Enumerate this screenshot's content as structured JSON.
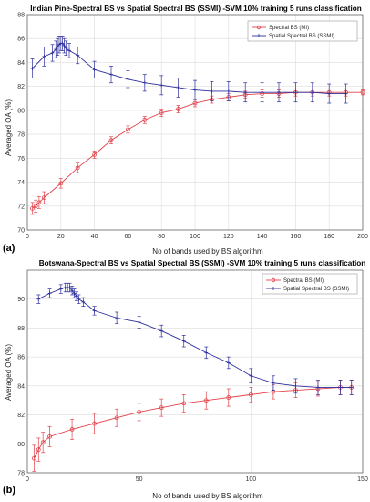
{
  "chart_data": [
    {
      "type": "line",
      "panel_label": "(a)",
      "title": "Indian Pine-Spectral BS vs Spatial Spectral BS (SSMI) -SVM 10% training 5 runs classification",
      "xlabel": "No of bands used by BS algorithm",
      "ylabel": "Averaged OA (%)",
      "xlim": [
        0,
        200
      ],
      "ylim": [
        70,
        88
      ],
      "xticks": [
        0,
        20,
        40,
        60,
        80,
        100,
        120,
        140,
        160,
        180,
        200
      ],
      "yticks": [
        70,
        72,
        74,
        76,
        78,
        80,
        82,
        84,
        86,
        88
      ],
      "grid": true,
      "legend_position": "top-right",
      "series": [
        {
          "name": "Spectral BS (MI)",
          "color": "#e0434b",
          "marker": "circle",
          "points": [
            {
              "x": 3,
              "y": 71.8,
              "err": 0.5
            },
            {
              "x": 5,
              "y": 72.0,
              "err": 0.5
            },
            {
              "x": 7,
              "y": 72.3,
              "err": 0.5
            },
            {
              "x": 10,
              "y": 72.7,
              "err": 0.5
            },
            {
              "x": 20,
              "y": 73.9,
              "err": 0.4
            },
            {
              "x": 30,
              "y": 75.2,
              "err": 0.4
            },
            {
              "x": 40,
              "y": 76.3,
              "err": 0.3
            },
            {
              "x": 50,
              "y": 77.5,
              "err": 0.3
            },
            {
              "x": 60,
              "y": 78.4,
              "err": 0.3
            },
            {
              "x": 70,
              "y": 79.2,
              "err": 0.3
            },
            {
              "x": 80,
              "y": 79.8,
              "err": 0.3
            },
            {
              "x": 90,
              "y": 80.1,
              "err": 0.3
            },
            {
              "x": 100,
              "y": 80.6,
              "err": 0.3
            },
            {
              "x": 110,
              "y": 80.9,
              "err": 0.3
            },
            {
              "x": 120,
              "y": 81.1,
              "err": 0.3
            },
            {
              "x": 130,
              "y": 81.3,
              "err": 0.3
            },
            {
              "x": 140,
              "y": 81.4,
              "err": 0.3
            },
            {
              "x": 150,
              "y": 81.4,
              "err": 0.3
            },
            {
              "x": 160,
              "y": 81.5,
              "err": 0.3
            },
            {
              "x": 170,
              "y": 81.5,
              "err": 0.3
            },
            {
              "x": 180,
              "y": 81.5,
              "err": 0.3
            },
            {
              "x": 190,
              "y": 81.5,
              "err": 0.3
            },
            {
              "x": 200,
              "y": 81.5,
              "err": 0.2
            }
          ]
        },
        {
          "name": "Spatial Spectral BS (SSMI)",
          "color": "#2c2f9c",
          "marker": "plus",
          "points": [
            {
              "x": 3,
              "y": 83.5,
              "err": 0.8
            },
            {
              "x": 10,
              "y": 84.5,
              "err": 0.8
            },
            {
              "x": 15,
              "y": 84.8,
              "err": 0.7
            },
            {
              "x": 17,
              "y": 85.1,
              "err": 0.7
            },
            {
              "x": 18,
              "y": 85.3,
              "err": 0.7
            },
            {
              "x": 19,
              "y": 85.5,
              "err": 0.7
            },
            {
              "x": 20,
              "y": 85.6,
              "err": 0.6
            },
            {
              "x": 21,
              "y": 85.6,
              "err": 0.6
            },
            {
              "x": 22,
              "y": 85.4,
              "err": 0.6
            },
            {
              "x": 23,
              "y": 85.2,
              "err": 0.6
            },
            {
              "x": 25,
              "y": 85.0,
              "err": 0.6
            },
            {
              "x": 30,
              "y": 84.6,
              "err": 0.7
            },
            {
              "x": 40,
              "y": 83.4,
              "err": 0.7
            },
            {
              "x": 50,
              "y": 83.0,
              "err": 0.7
            },
            {
              "x": 60,
              "y": 82.6,
              "err": 0.7
            },
            {
              "x": 70,
              "y": 82.3,
              "err": 0.7
            },
            {
              "x": 80,
              "y": 82.1,
              "err": 0.8
            },
            {
              "x": 90,
              "y": 81.9,
              "err": 0.8
            },
            {
              "x": 100,
              "y": 81.7,
              "err": 0.8
            },
            {
              "x": 110,
              "y": 81.6,
              "err": 0.8
            },
            {
              "x": 120,
              "y": 81.6,
              "err": 0.8
            },
            {
              "x": 130,
              "y": 81.5,
              "err": 0.8
            },
            {
              "x": 140,
              "y": 81.5,
              "err": 0.8
            },
            {
              "x": 150,
              "y": 81.5,
              "err": 0.8
            },
            {
              "x": 160,
              "y": 81.5,
              "err": 0.8
            },
            {
              "x": 170,
              "y": 81.5,
              "err": 0.8
            },
            {
              "x": 180,
              "y": 81.4,
              "err": 0.8
            },
            {
              "x": 190,
              "y": 81.4,
              "err": 0.8
            }
          ]
        }
      ]
    },
    {
      "type": "line",
      "panel_label": "(b)",
      "title": "Botswana-Spectral BS vs Spatial Spectral BS (SSMI) -SVM 10% training 5 runs classification",
      "xlabel": "No of bands used by BS algorithm",
      "ylabel": "Averaged OA (%)",
      "xlim": [
        0,
        150
      ],
      "ylim": [
        78,
        92
      ],
      "xticks": [
        0,
        50,
        100,
        150
      ],
      "yticks": [
        78,
        80,
        82,
        84,
        86,
        88,
        90
      ],
      "grid": true,
      "legend_position": "top-right",
      "series": [
        {
          "name": "Spectral BS (MI)",
          "color": "#e0434b",
          "marker": "circle",
          "points": [
            {
              "x": 3,
              "y": 79.0,
              "err": 0.9
            },
            {
              "x": 5,
              "y": 79.6,
              "err": 0.8
            },
            {
              "x": 7,
              "y": 80.1,
              "err": 0.7
            },
            {
              "x": 10,
              "y": 80.5,
              "err": 0.7
            },
            {
              "x": 20,
              "y": 81.0,
              "err": 0.7
            },
            {
              "x": 30,
              "y": 81.4,
              "err": 0.7
            },
            {
              "x": 40,
              "y": 81.8,
              "err": 0.6
            },
            {
              "x": 50,
              "y": 82.2,
              "err": 0.6
            },
            {
              "x": 60,
              "y": 82.5,
              "err": 0.6
            },
            {
              "x": 70,
              "y": 82.8,
              "err": 0.6
            },
            {
              "x": 80,
              "y": 83.0,
              "err": 0.6
            },
            {
              "x": 90,
              "y": 83.2,
              "err": 0.6
            },
            {
              "x": 100,
              "y": 83.4,
              "err": 0.5
            },
            {
              "x": 110,
              "y": 83.6,
              "err": 0.5
            },
            {
              "x": 120,
              "y": 83.7,
              "err": 0.5
            },
            {
              "x": 130,
              "y": 83.8,
              "err": 0.5
            },
            {
              "x": 140,
              "y": 83.9,
              "err": 0.5
            },
            {
              "x": 145,
              "y": 83.9,
              "err": 0.5
            }
          ]
        },
        {
          "name": "Spatial Spectral BS (SSMI)",
          "color": "#2c2f9c",
          "marker": "plus",
          "points": [
            {
              "x": 5,
              "y": 90.0,
              "err": 0.3
            },
            {
              "x": 10,
              "y": 90.4,
              "err": 0.3
            },
            {
              "x": 15,
              "y": 90.7,
              "err": 0.3
            },
            {
              "x": 17,
              "y": 90.8,
              "err": 0.3
            },
            {
              "x": 18,
              "y": 90.8,
              "err": 0.3
            },
            {
              "x": 19,
              "y": 90.8,
              "err": 0.3
            },
            {
              "x": 20,
              "y": 90.6,
              "err": 0.3
            },
            {
              "x": 21,
              "y": 90.4,
              "err": 0.3
            },
            {
              "x": 22,
              "y": 90.2,
              "err": 0.3
            },
            {
              "x": 23,
              "y": 90.0,
              "err": 0.3
            },
            {
              "x": 25,
              "y": 89.8,
              "err": 0.3
            },
            {
              "x": 30,
              "y": 89.2,
              "err": 0.3
            },
            {
              "x": 40,
              "y": 88.7,
              "err": 0.4
            },
            {
              "x": 50,
              "y": 88.4,
              "err": 0.4
            },
            {
              "x": 60,
              "y": 87.8,
              "err": 0.4
            },
            {
              "x": 70,
              "y": 87.1,
              "err": 0.4
            },
            {
              "x": 80,
              "y": 86.3,
              "err": 0.4
            },
            {
              "x": 90,
              "y": 85.6,
              "err": 0.4
            },
            {
              "x": 100,
              "y": 84.7,
              "err": 0.5
            },
            {
              "x": 110,
              "y": 84.2,
              "err": 0.5
            },
            {
              "x": 120,
              "y": 84.0,
              "err": 0.5
            },
            {
              "x": 130,
              "y": 83.9,
              "err": 0.5
            },
            {
              "x": 140,
              "y": 83.9,
              "err": 0.5
            },
            {
              "x": 145,
              "y": 83.9,
              "err": 0.5
            }
          ]
        }
      ]
    }
  ]
}
